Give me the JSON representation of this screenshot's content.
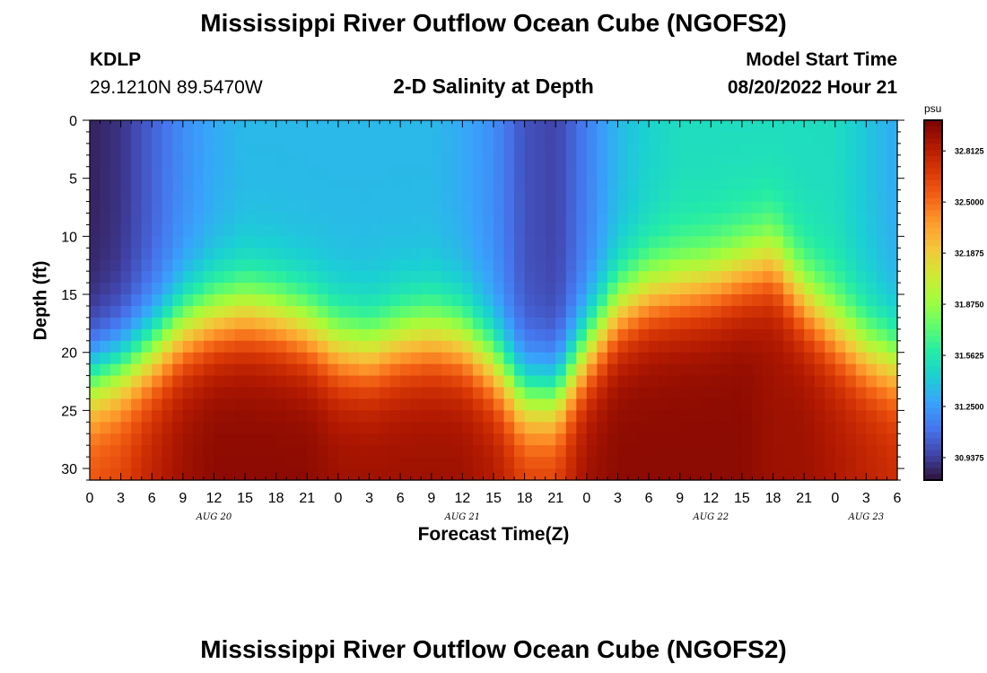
{
  "header": {
    "title": "Mississippi River Outflow Ocean Cube (NGOFS2)",
    "station_id": "KDLP",
    "station_coords": "29.1210N  89.5470W",
    "plot_title": "2-D Salinity at Depth",
    "model_start_label": "Model Start Time",
    "model_start_value": "08/20/2022 Hour 21"
  },
  "footer": {
    "title": "Mississippi River Outflow Ocean Cube (NGOFS2)"
  },
  "chart_data": {
    "type": "heatmap",
    "xlabel": "Forecast Time(Z)",
    "ylabel": "Depth (ft)",
    "x_ticks": [
      "0",
      "3",
      "6",
      "9",
      "12",
      "15",
      "18",
      "21",
      "0",
      "3",
      "6",
      "9",
      "12",
      "15",
      "18",
      "21",
      "0",
      "3",
      "6",
      "9",
      "12",
      "15",
      "18",
      "21",
      "0",
      "3",
      "6"
    ],
    "date_labels": [
      {
        "label": "AUG 20",
        "hour": 12
      },
      {
        "label": "AUG 21",
        "hour": 36
      },
      {
        "label": "AUG 22",
        "hour": 60
      },
      {
        "label": "AUG 23",
        "hour": 75
      }
    ],
    "y_ticks": [
      0,
      5,
      10,
      15,
      20,
      25,
      30
    ],
    "xlim": [
      0,
      78
    ],
    "ylim": [
      31,
      0
    ],
    "colorbar": {
      "unit": "psu",
      "range": [
        30.8,
        33.0
      ],
      "tick_values": [
        32.8125,
        32.5,
        32.1875,
        31.875,
        31.5625,
        31.25,
        30.9375
      ],
      "tick_labels": [
        "32.8125",
        "32.5000",
        "32.1875",
        "31.8750",
        "31.5625",
        "31.2500",
        "30.9375"
      ],
      "colors": [
        "#30123b",
        "#4145ab",
        "#4675ed",
        "#39a2fc",
        "#1bcfd4",
        "#24eca6",
        "#61fc6c",
        "#a4fc3b",
        "#d1e834",
        "#f3c63a",
        "#fe9b2d",
        "#f36315",
        "#d93806",
        "#b11901",
        "#7a0402"
      ]
    },
    "salinity_profile_hours": [
      0,
      3,
      6,
      9,
      12,
      15,
      18,
      21,
      24,
      27,
      30,
      33,
      36,
      39,
      42,
      45,
      48,
      51,
      54,
      57,
      60,
      63,
      66,
      69,
      72,
      75,
      78
    ],
    "halocline_depth_ft": [
      22.5,
      21.5,
      20,
      18,
      17,
      16.5,
      17,
      18,
      19.5,
      20,
      19,
      18.5,
      19,
      21,
      24,
      24,
      20,
      16.5,
      15,
      14.5,
      14,
      13,
      12,
      15.5,
      18,
      20,
      21
    ],
    "surface_salinity_psu": [
      30.85,
      30.9,
      31.05,
      31.2,
      31.3,
      31.35,
      31.35,
      31.35,
      31.35,
      31.35,
      31.35,
      31.35,
      31.3,
      31.2,
      31.0,
      30.95,
      31.15,
      31.35,
      31.45,
      31.5,
      31.5,
      31.5,
      31.5,
      31.5,
      31.5,
      31.4,
      31.3
    ],
    "bottom_salinity_psu": [
      32.6,
      32.65,
      32.8,
      32.9,
      32.95,
      32.95,
      32.95,
      32.95,
      32.9,
      32.9,
      32.9,
      32.9,
      32.9,
      32.85,
      32.7,
      32.7,
      32.9,
      32.95,
      32.95,
      32.95,
      32.95,
      32.95,
      32.9,
      32.9,
      32.85,
      32.8,
      32.75
    ]
  }
}
